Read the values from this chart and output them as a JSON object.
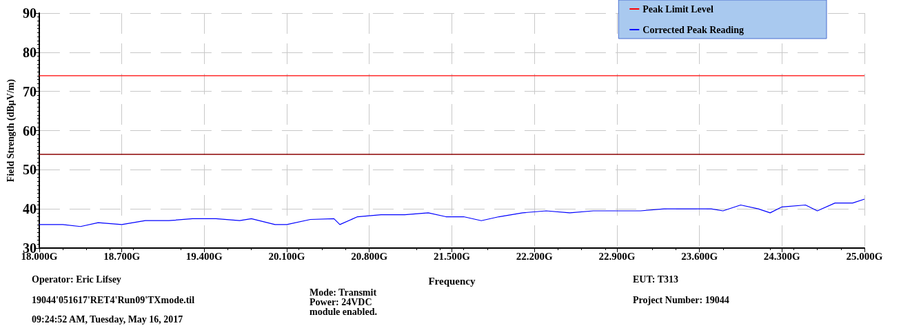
{
  "chart_data": {
    "type": "line",
    "xlabel": "Frequency",
    "ylabel": "Field Strength (dBμV/m)",
    "xlim": [
      18,
      25
    ],
    "ylim": [
      30,
      90
    ],
    "xticks": [
      {
        "value": 18,
        "label": "18.000G"
      },
      {
        "value": 18.7,
        "label": "18.700G"
      },
      {
        "value": 19.4,
        "label": "19.400G"
      },
      {
        "value": 20.1,
        "label": "20.100G"
      },
      {
        "value": 20.8,
        "label": "20.800G"
      },
      {
        "value": 21.5,
        "label": "21.500G"
      },
      {
        "value": 22.2,
        "label": "22.200G"
      },
      {
        "value": 22.9,
        "label": "22.900G"
      },
      {
        "value": 23.6,
        "label": "23.600G"
      },
      {
        "value": 24.3,
        "label": "24.300G"
      },
      {
        "value": 25,
        "label": "25.000G"
      }
    ],
    "yticks": [
      30,
      40,
      50,
      60,
      70,
      80,
      90
    ],
    "grid": true,
    "legend": "top right",
    "marker": "none",
    "line_style": "solid",
    "series": [
      {
        "name": "Peak Limit Level",
        "color": "#ff0000",
        "x": [
          18,
          25
        ],
        "values": [
          74,
          74
        ]
      },
      {
        "name": "Corrected Peak Reading",
        "color": "#0000ff",
        "x": [
          18.0,
          18.2,
          18.35,
          18.5,
          18.7,
          18.9,
          19.1,
          19.3,
          19.5,
          19.7,
          19.8,
          20.0,
          20.1,
          20.3,
          20.5,
          20.55,
          20.7,
          20.9,
          21.1,
          21.3,
          21.45,
          21.6,
          21.75,
          21.9,
          22.1,
          22.3,
          22.5,
          22.7,
          22.9,
          23.1,
          23.3,
          23.5,
          23.7,
          23.8,
          23.95,
          24.1,
          24.2,
          24.3,
          24.5,
          24.6,
          24.75,
          24.9,
          25.0
        ],
        "values": [
          36,
          36,
          35.5,
          36.5,
          36,
          37,
          37,
          37.5,
          37.5,
          37,
          37.5,
          36,
          36,
          37.3,
          37.5,
          36,
          38,
          38.5,
          38.5,
          39,
          38,
          38,
          37,
          38,
          39,
          39.5,
          39,
          39.5,
          39.5,
          39.5,
          40,
          40,
          40,
          39.5,
          41,
          40,
          39,
          40.5,
          41,
          39.5,
          41.5,
          41.5,
          42.5
        ]
      }
    ],
    "ref_lines": [
      {
        "axis": "y",
        "value": 54,
        "color": "#8b0000",
        "line_style": "solid"
      }
    ],
    "annotations": [
      "Operator: Eric Lifsey",
      "19044'051617'RET4'Run09'TXmode.til",
      "09:24:52 AM, Tuesday, May 16, 2017",
      "Mode: Transmit",
      "Power: 24VDC",
      "module enabled.",
      "EUT: T313",
      "Project Number: 19044"
    ]
  }
}
